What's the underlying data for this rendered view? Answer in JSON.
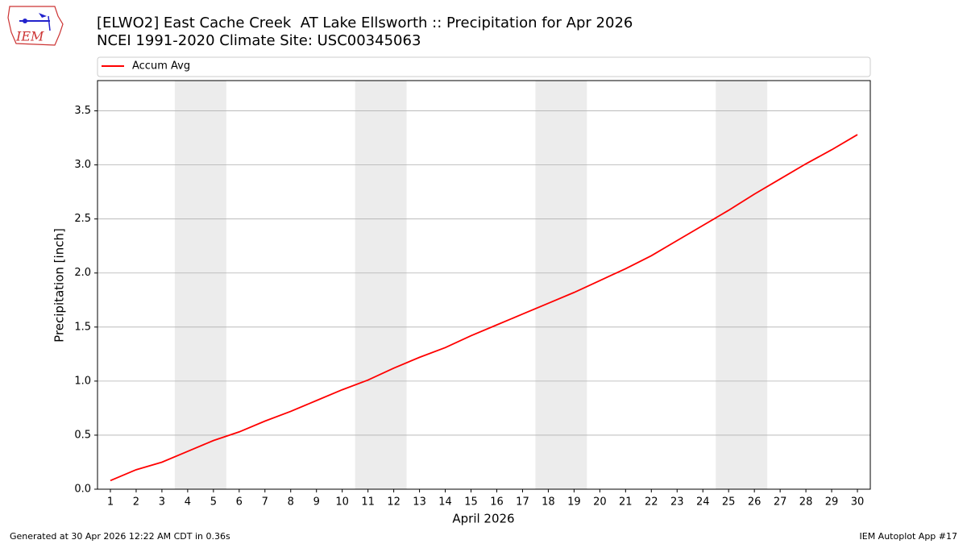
{
  "logo_text": "IEM",
  "chart_data": {
    "type": "line",
    "title": "[ELWO2] East Cache Creek  AT Lake Ellsworth :: Precipitation for Apr 2026",
    "subtitle": "NCEI 1991-2020 Climate Site: USC00345063",
    "x_label": "April 2026",
    "y_label": "Precipitation [inch]",
    "x": [
      1,
      2,
      3,
      4,
      5,
      6,
      7,
      8,
      9,
      10,
      11,
      12,
      13,
      14,
      15,
      16,
      17,
      18,
      19,
      20,
      21,
      22,
      23,
      24,
      25,
      26,
      27,
      28,
      29,
      30
    ],
    "series": [
      {
        "name": "Accum Avg",
        "color": "#ff0000",
        "values": [
          0.08,
          0.18,
          0.25,
          0.35,
          0.45,
          0.53,
          0.63,
          0.72,
          0.82,
          0.92,
          1.01,
          1.12,
          1.22,
          1.31,
          1.42,
          1.52,
          1.62,
          1.72,
          1.82,
          1.93,
          2.04,
          2.16,
          2.3,
          2.44,
          2.58,
          2.73,
          2.87,
          3.01,
          3.14,
          3.28
        ]
      }
    ],
    "shaded_spans": [
      [
        3.5,
        5.5
      ],
      [
        10.5,
        12.5
      ],
      [
        17.5,
        19.5
      ],
      [
        24.5,
        26.5
      ]
    ],
    "shade_color": "#ececec",
    "xlim": [
      0.5,
      30.5
    ],
    "ylim": [
      0,
      3.78
    ],
    "xticks": [
      1,
      2,
      3,
      4,
      5,
      6,
      7,
      8,
      9,
      10,
      11,
      12,
      13,
      14,
      15,
      16,
      17,
      18,
      19,
      20,
      21,
      22,
      23,
      24,
      25,
      26,
      27,
      28,
      29,
      30
    ],
    "yticks": [
      {
        "value": 0,
        "label": "0.0"
      },
      {
        "value": 0.5,
        "label": "0.5"
      },
      {
        "value": 1,
        "label": "1.0"
      },
      {
        "value": 1.5,
        "label": "1.5"
      },
      {
        "value": 2,
        "label": "2.0"
      },
      {
        "value": 2.5,
        "label": "2.5"
      },
      {
        "value": 3,
        "label": "3.0"
      },
      {
        "value": 3.5,
        "label": "3.5"
      }
    ],
    "grid": true,
    "legend": "top",
    "footer_left": "Generated at 30 Apr 2026 12:22 AM CDT in 0.36s",
    "footer_right": "IEM Autoplot App #17"
  }
}
